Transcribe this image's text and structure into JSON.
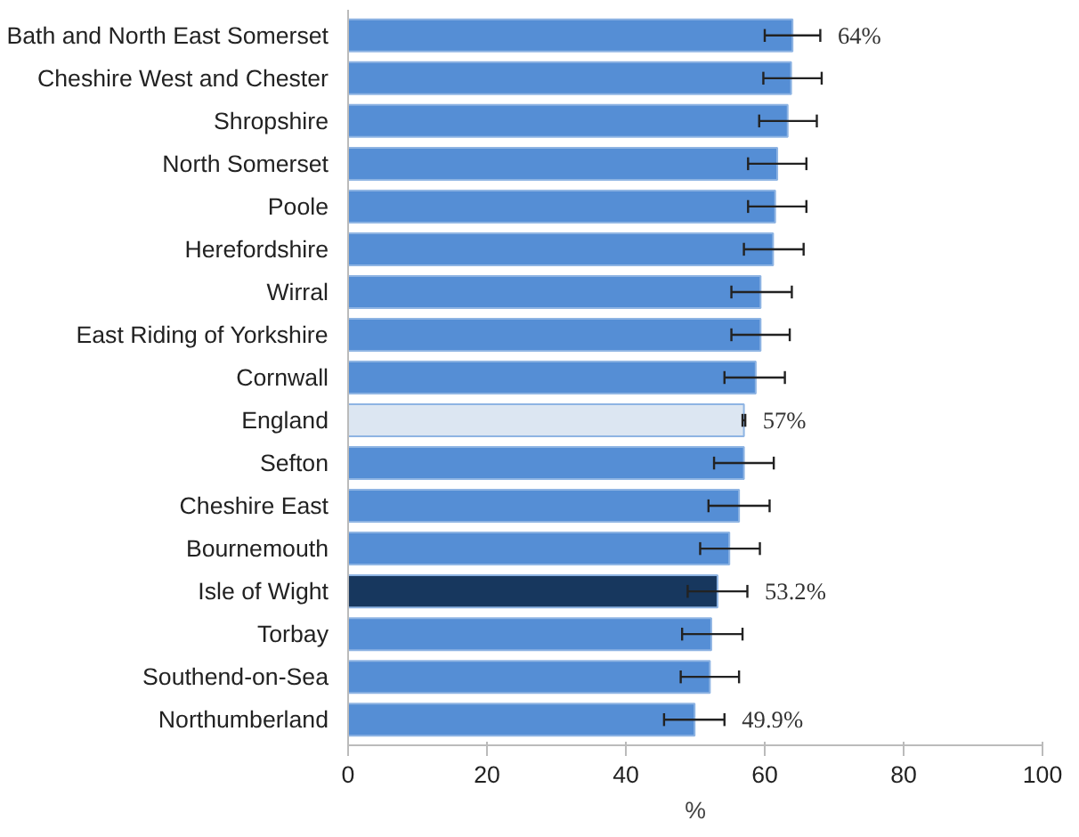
{
  "chart_data": {
    "type": "bar",
    "orientation": "horizontal",
    "xlabel": "%",
    "categories": [
      "Bath and North East Somerset",
      "Cheshire West and Chester",
      "Shropshire",
      "North Somerset",
      "Poole",
      "Herefordshire",
      "Wirral",
      "East Riding of Yorkshire",
      "Cornwall",
      "England",
      "Sefton",
      "Cheshire East",
      "Bournemouth",
      "Isle of Wight",
      "Torbay",
      "Southend-on-Sea",
      "Northumberland"
    ],
    "values": [
      64,
      63.8,
      63.3,
      61.8,
      61.5,
      61.2,
      59.4,
      59.4,
      58.7,
      57,
      57.0,
      56.3,
      54.9,
      53.2,
      52.3,
      52.1,
      49.9
    ],
    "errors": [
      [
        60,
        68
      ],
      [
        59.8,
        68.2
      ],
      [
        59.2,
        67.5
      ],
      [
        57.6,
        66.0
      ],
      [
        57.6,
        66.0
      ],
      [
        57.0,
        65.6
      ],
      [
        55.2,
        63.9
      ],
      [
        55.2,
        63.6
      ],
      [
        54.2,
        62.9
      ],
      [
        56.8,
        57.2
      ],
      [
        52.7,
        61.3
      ],
      [
        51.9,
        60.7
      ],
      [
        50.7,
        59.3
      ],
      [
        48.9,
        57.5
      ],
      [
        48.1,
        56.8
      ],
      [
        47.9,
        56.3
      ],
      [
        45.5,
        54.2
      ]
    ],
    "colors": [
      "#558ed5",
      "#558ed5",
      "#558ed5",
      "#558ed5",
      "#558ed5",
      "#558ed5",
      "#558ed5",
      "#558ed5",
      "#558ed5",
      "#dce6f2",
      "#558ed5",
      "#558ed5",
      "#558ed5",
      "#17375e",
      "#558ed5",
      "#558ed5",
      "#558ed5"
    ],
    "value_labels": [
      "64%",
      null,
      null,
      null,
      null,
      null,
      null,
      null,
      null,
      "57%",
      null,
      null,
      null,
      "53.2%",
      null,
      null,
      "49.9%"
    ],
    "xlim": [
      0,
      100
    ],
    "xticks": [
      0,
      20,
      40,
      60,
      80,
      100
    ],
    "grid": false
  }
}
